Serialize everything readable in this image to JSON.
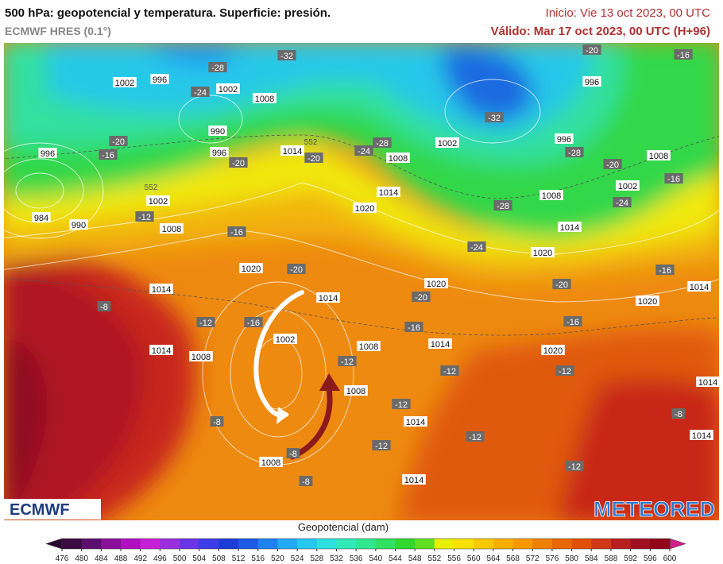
{
  "header": {
    "title": "500 hPa: geopotencial y temperatura. Superficie: presión.",
    "model": "ECMWF HRES (0.1°)",
    "init": "Inicio: Vie 13 oct 2023, 00 UTC",
    "valid": "Válido: Mar 17 oct 2023, 00 UTC (H+96)"
  },
  "logos": {
    "left": "ECMWF",
    "right": "METEORED"
  },
  "colorbar": {
    "label": "Geopotencial (dam)",
    "ticks": [
      476,
      480,
      484,
      488,
      492,
      496,
      500,
      504,
      508,
      512,
      516,
      520,
      524,
      528,
      532,
      536,
      540,
      544,
      548,
      552,
      556,
      560,
      564,
      568,
      572,
      576,
      580,
      584,
      588,
      592,
      596,
      600
    ],
    "colors": [
      "#3a0a40",
      "#5c0f6f",
      "#8a0f9a",
      "#b010c0",
      "#c81ed6",
      "#9b2fe0",
      "#6a35e6",
      "#3c3ce8",
      "#1e3cd8",
      "#1e5ae6",
      "#1e82f0",
      "#22aaf5",
      "#26c8f0",
      "#2ce0e0",
      "#30e8b8",
      "#30e890",
      "#30e060",
      "#30d830",
      "#60e020",
      "#e8f000",
      "#f8e000",
      "#f8c800",
      "#f8b000",
      "#f89800",
      "#f08000",
      "#e86800",
      "#e05000",
      "#d03818",
      "#b82020",
      "#a01020",
      "#900818"
    ],
    "under_color": "#2a0630",
    "over_color": "#d0208a"
  },
  "map": {
    "pressure_labels": [
      "1002",
      "996",
      "1002",
      "1008",
      "990",
      "996",
      "996",
      "984",
      "990",
      "1002",
      "1008",
      "1014",
      "1008",
      "1002",
      "996",
      "996",
      "1008",
      "1002",
      "1008",
      "1014",
      "1020",
      "1014",
      "1020",
      "1020",
      "1014",
      "1020",
      "1014",
      "1014",
      "1020",
      "1002",
      "1008",
      "1014",
      "1008",
      "1014",
      "1020",
      "1008",
      "1014",
      "1014",
      "1014",
      "1008",
      "1014"
    ],
    "temperature_labels": [
      "-32",
      "-28",
      "-24",
      "-20",
      "-16",
      "-20",
      "-20",
      "-24",
      "-28",
      "-32",
      "-28",
      "-20",
      "-20",
      "-16",
      "-16",
      "-24",
      "-28",
      "-12",
      "-16",
      "-20",
      "-24",
      "-20",
      "-16",
      "-20",
      "-16",
      "-16",
      "-8",
      "-12",
      "-16",
      "-12",
      "-12",
      "-12",
      "-8",
      "-12",
      "-12",
      "-12",
      "-8",
      "-8",
      "-8",
      "-12"
    ],
    "contour_labels": [
      "552",
      "552"
    ]
  }
}
